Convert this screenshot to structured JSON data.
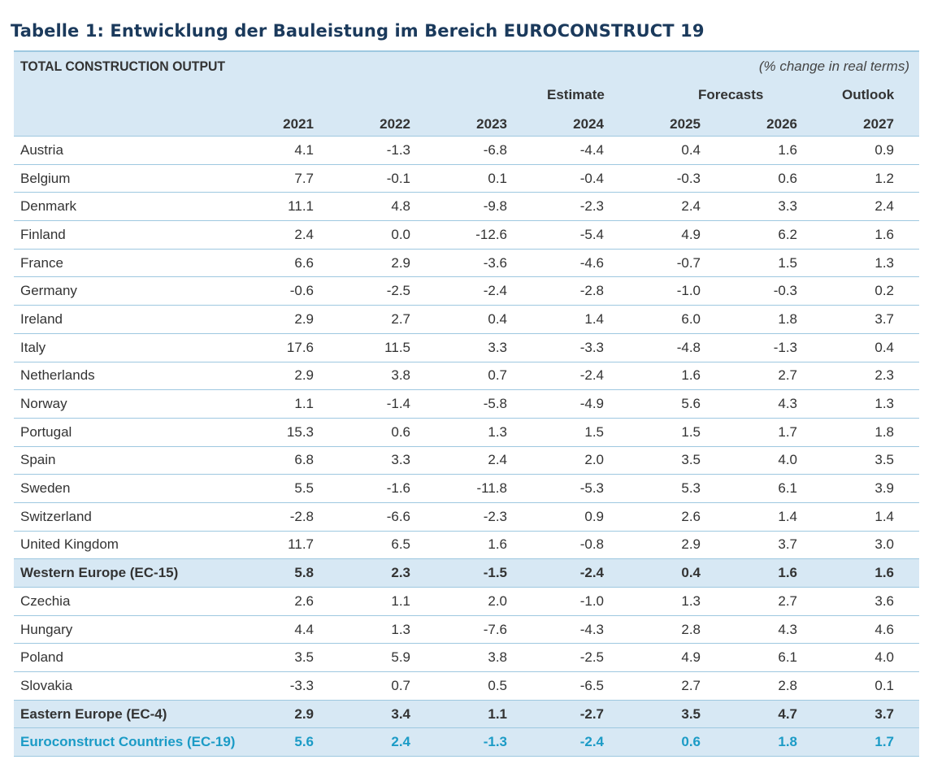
{
  "caption": "Tabelle 1: Entwicklung der Bauleistung im Bereich EUROCONSTRUCT 19",
  "table": {
    "title": "TOTAL CONSTRUCTION OUTPUT",
    "unit": "(% change in real terms)",
    "group_labels": {
      "estimate": "Estimate",
      "forecasts": "Forecasts",
      "outlook": "Outlook"
    },
    "years": [
      "2021",
      "2022",
      "2023",
      "2024",
      "2025",
      "2026",
      "2027"
    ],
    "rows": [
      {
        "name": "Austria",
        "values": [
          "4.1",
          "-1.3",
          "-6.8",
          "-4.4",
          "0.4",
          "1.6",
          "0.9"
        ],
        "kind": "normal"
      },
      {
        "name": "Belgium",
        "values": [
          "7.7",
          "-0.1",
          "0.1",
          "-0.4",
          "-0.3",
          "0.6",
          "1.2"
        ],
        "kind": "normal"
      },
      {
        "name": "Denmark",
        "values": [
          "11.1",
          "4.8",
          "-9.8",
          "-2.3",
          "2.4",
          "3.3",
          "2.4"
        ],
        "kind": "normal"
      },
      {
        "name": "Finland",
        "values": [
          "2.4",
          "0.0",
          "-12.6",
          "-5.4",
          "4.9",
          "6.2",
          "1.6"
        ],
        "kind": "normal"
      },
      {
        "name": "France",
        "values": [
          "6.6",
          "2.9",
          "-3.6",
          "-4.6",
          "-0.7",
          "1.5",
          "1.3"
        ],
        "kind": "normal"
      },
      {
        "name": "Germany",
        "values": [
          "-0.6",
          "-2.5",
          "-2.4",
          "-2.8",
          "-1.0",
          "-0.3",
          "0.2"
        ],
        "kind": "normal"
      },
      {
        "name": "Ireland",
        "values": [
          "2.9",
          "2.7",
          "0.4",
          "1.4",
          "6.0",
          "1.8",
          "3.7"
        ],
        "kind": "normal"
      },
      {
        "name": "Italy",
        "values": [
          "17.6",
          "11.5",
          "3.3",
          "-3.3",
          "-4.8",
          "-1.3",
          "0.4"
        ],
        "kind": "normal"
      },
      {
        "name": "Netherlands",
        "values": [
          "2.9",
          "3.8",
          "0.7",
          "-2.4",
          "1.6",
          "2.7",
          "2.3"
        ],
        "kind": "normal"
      },
      {
        "name": "Norway",
        "values": [
          "1.1",
          "-1.4",
          "-5.8",
          "-4.9",
          "5.6",
          "4.3",
          "1.3"
        ],
        "kind": "normal"
      },
      {
        "name": "Portugal",
        "values": [
          "15.3",
          "0.6",
          "1.3",
          "1.5",
          "1.5",
          "1.7",
          "1.8"
        ],
        "kind": "normal"
      },
      {
        "name": "Spain",
        "values": [
          "6.8",
          "3.3",
          "2.4",
          "2.0",
          "3.5",
          "4.0",
          "3.5"
        ],
        "kind": "normal"
      },
      {
        "name": "Sweden",
        "values": [
          "5.5",
          "-1.6",
          "-11.8",
          "-5.3",
          "5.3",
          "6.1",
          "3.9"
        ],
        "kind": "normal"
      },
      {
        "name": "Switzerland",
        "values": [
          "-2.8",
          "-6.6",
          "-2.3",
          "0.9",
          "2.6",
          "1.4",
          "1.4"
        ],
        "kind": "normal"
      },
      {
        "name": "United Kingdom",
        "values": [
          "11.7",
          "6.5",
          "1.6",
          "-0.8",
          "2.9",
          "3.7",
          "3.0"
        ],
        "kind": "normal"
      },
      {
        "name": "Western Europe (EC-15)",
        "values": [
          "5.8",
          "2.3",
          "-1.5",
          "-2.4",
          "0.4",
          "1.6",
          "1.6"
        ],
        "kind": "total"
      },
      {
        "name": "Czechia",
        "values": [
          "2.6",
          "1.1",
          "2.0",
          "-1.0",
          "1.3",
          "2.7",
          "3.6"
        ],
        "kind": "normal"
      },
      {
        "name": "Hungary",
        "values": [
          "4.4",
          "1.3",
          "-7.6",
          "-4.3",
          "2.8",
          "4.3",
          "4.6"
        ],
        "kind": "normal"
      },
      {
        "name": "Poland",
        "values": [
          "3.5",
          "5.9",
          "3.8",
          "-2.5",
          "4.9",
          "6.1",
          "4.0"
        ],
        "kind": "normal"
      },
      {
        "name": "Slovakia",
        "values": [
          "-3.3",
          "0.7",
          "0.5",
          "-6.5",
          "2.7",
          "2.8",
          "0.1"
        ],
        "kind": "normal"
      },
      {
        "name": "Eastern Europe (EC-4)",
        "values": [
          "2.9",
          "3.4",
          "1.1",
          "-2.7",
          "3.5",
          "4.7",
          "3.7"
        ],
        "kind": "total"
      },
      {
        "name": "Euroconstruct Countries (EC-19)",
        "values": [
          "5.6",
          "2.4",
          "-1.3",
          "-2.4",
          "0.6",
          "1.8",
          "1.7"
        ],
        "kind": "ec19"
      }
    ]
  }
}
